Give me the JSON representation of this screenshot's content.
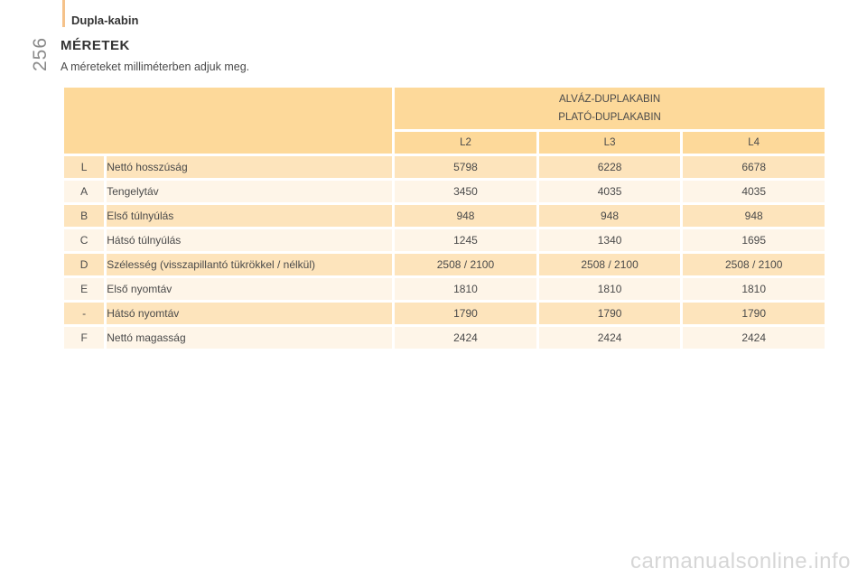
{
  "page_number": "256",
  "section_title": "Dupla-kabin",
  "heading": "MÉRETEK",
  "intro": "A méreteket milliméterben adjuk meg.",
  "table": {
    "group_header_line1": "ALVÁZ-DUPLAKABIN",
    "group_header_line2": "PLATÓ-DUPLAKABIN",
    "columns": [
      "L2",
      "L3",
      "L4"
    ],
    "rows": [
      {
        "code": "L",
        "label": "Nettó hosszúság",
        "values": [
          "5798",
          "6228",
          "6678"
        ]
      },
      {
        "code": "A",
        "label": "Tengelytáv",
        "values": [
          "3450",
          "4035",
          "4035"
        ]
      },
      {
        "code": "B",
        "label": "Első túlnyúlás",
        "values": [
          "948",
          "948",
          "948"
        ]
      },
      {
        "code": "C",
        "label": "Hátsó túlnyúlás",
        "values": [
          "1245",
          "1340",
          "1695"
        ]
      },
      {
        "code": "D",
        "label": "Szélesség (visszapillantó tükrökkel / nélkül)",
        "values": [
          "2508 / 2100",
          "2508 / 2100",
          "2508 / 2100"
        ]
      },
      {
        "code": "E",
        "label": "Első nyomtáv",
        "values": [
          "1810",
          "1810",
          "1810"
        ]
      },
      {
        "code": "-",
        "label": "Hátsó nyomtáv",
        "values": [
          "1790",
          "1790",
          "1790"
        ]
      },
      {
        "code": "F",
        "label": "Nettó magasság",
        "values": [
          "2424",
          "2424",
          "2424"
        ]
      }
    ]
  },
  "watermark": "carmanualsonline.info",
  "colors": {
    "header_fill": "#fdd99a",
    "row_dark": "#fde4bc",
    "row_light": "#fef5e8",
    "accent_bar": "#f5c28a"
  }
}
